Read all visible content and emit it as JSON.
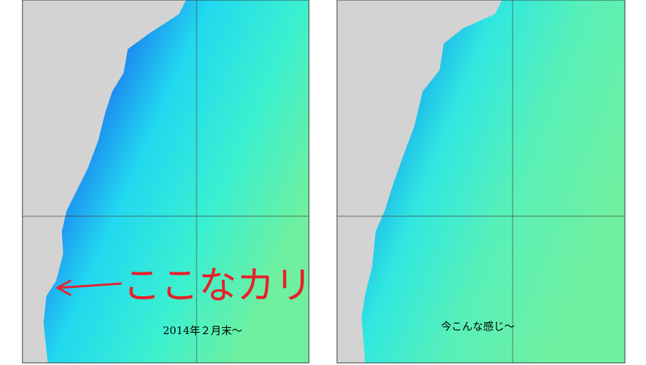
{
  "panels": [
    {
      "caption": "2014年２月末～",
      "annotation": "ここなカリ"
    },
    {
      "caption": "今こんな感じ～"
    }
  ]
}
